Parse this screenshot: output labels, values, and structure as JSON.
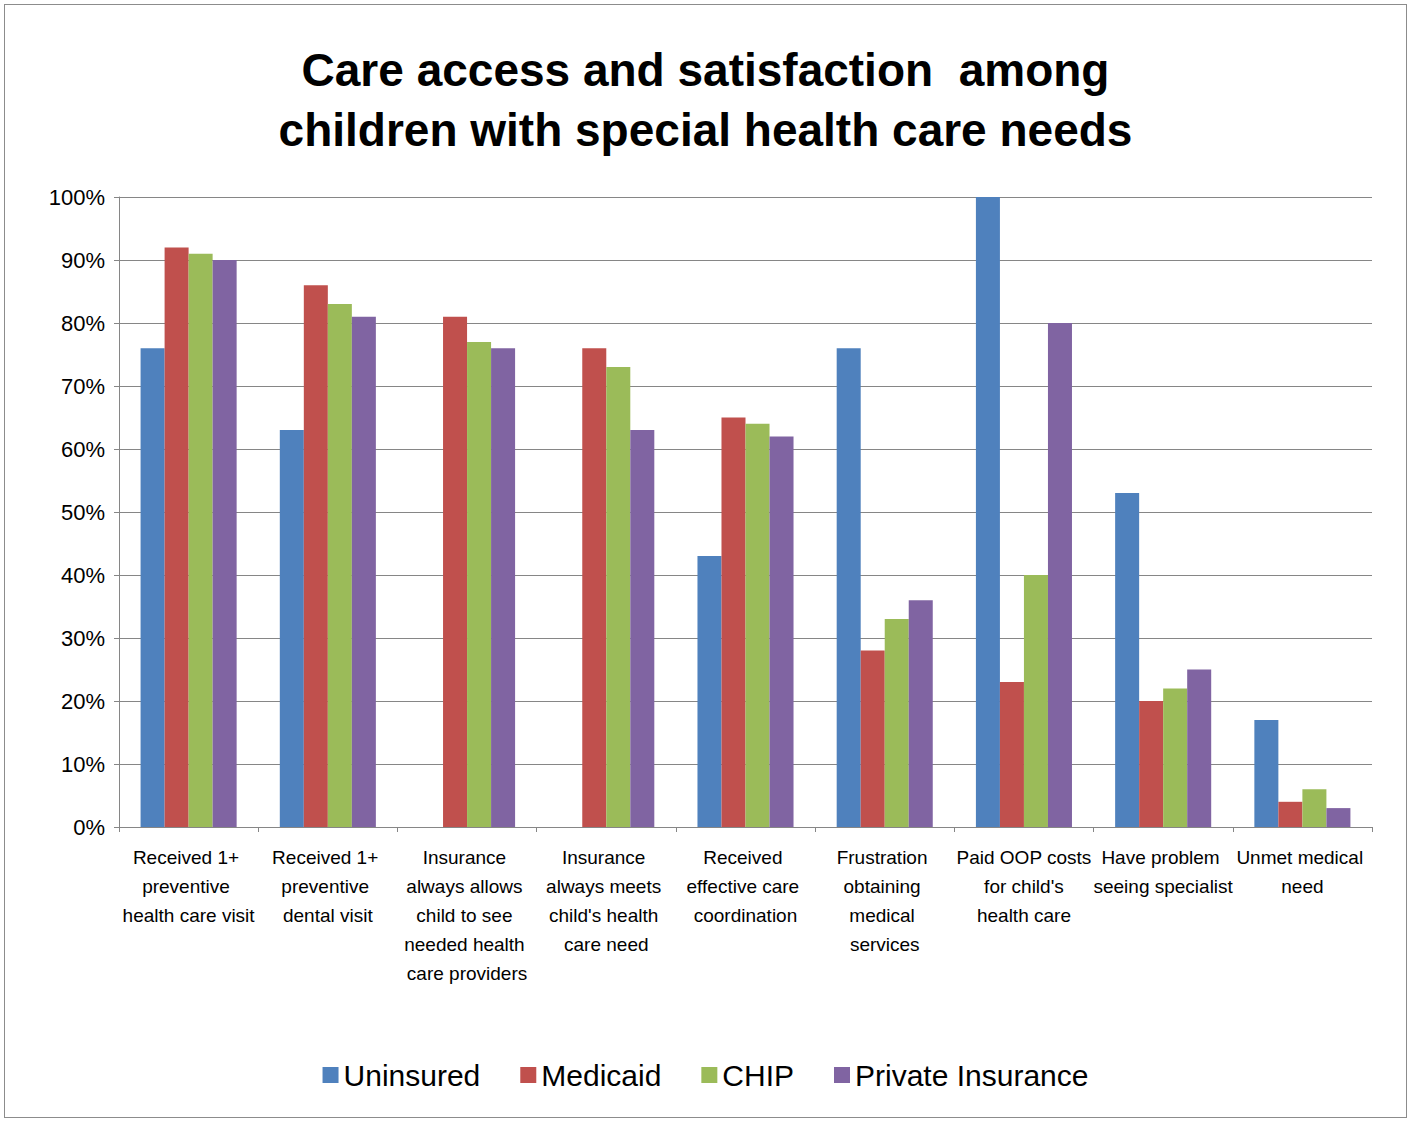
{
  "chart_data": {
    "type": "bar",
    "title": "Care access and satisfaction  among children with special health care needs",
    "categories": [
      "Received 1+ preventive health care visit",
      "Received 1+ preventive dental visit",
      "Insurance always allows child to see needed health care providers",
      "Insurance always meets child's health care need",
      "Received effective care coordination",
      "Frustration obtaining medical services",
      "Paid OOP costs for child's health care",
      "Have problem seeing specialist",
      "Unmet medical need"
    ],
    "series": [
      {
        "name": "Uninsured",
        "color": "#4f81bd",
        "values": [
          76,
          63,
          null,
          null,
          43,
          76,
          100,
          53,
          17
        ]
      },
      {
        "name": "Medicaid",
        "color": "#c0504d",
        "values": [
          92,
          86,
          81,
          76,
          65,
          28,
          23,
          20,
          4
        ]
      },
      {
        "name": "CHIP",
        "color": "#9bbb59",
        "values": [
          91,
          83,
          77,
          73,
          64,
          33,
          40,
          22,
          6
        ]
      },
      {
        "name": "Private Insurance",
        "color": "#8064a2",
        "values": [
          90,
          81,
          76,
          63,
          62,
          36,
          80,
          25,
          3
        ]
      }
    ],
    "ylim": [
      0,
      100
    ],
    "yticks": [
      {
        "value": 0,
        "label": "0%"
      },
      {
        "value": 10,
        "label": "10%"
      },
      {
        "value": 20,
        "label": "20%"
      },
      {
        "value": 30,
        "label": "30%"
      },
      {
        "value": 40,
        "label": "40%"
      },
      {
        "value": 50,
        "label": "50%"
      },
      {
        "value": 60,
        "label": "60%"
      },
      {
        "value": 70,
        "label": "70%"
      },
      {
        "value": 80,
        "label": "80%"
      },
      {
        "value": 90,
        "label": "90%"
      },
      {
        "value": 100,
        "label": "100%"
      }
    ],
    "grid": true,
    "legend": "bottom"
  }
}
